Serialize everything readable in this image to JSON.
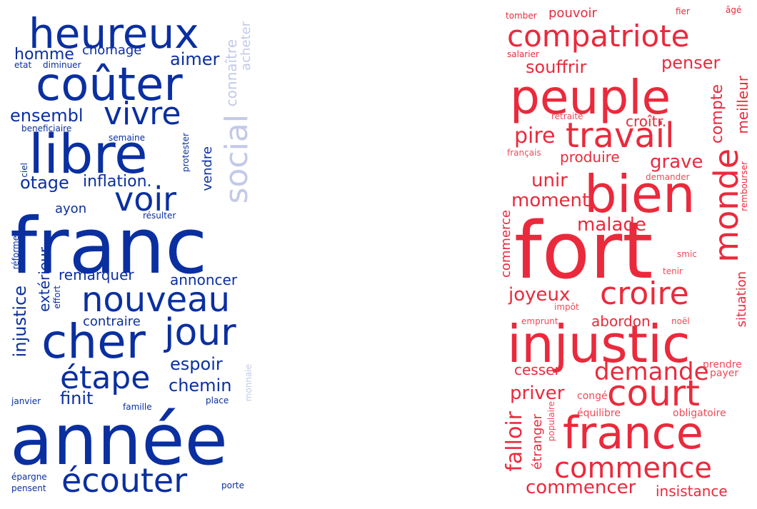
{
  "left_cloud": {
    "color": "#0a2fa0",
    "light_color": "#c3c9e8",
    "words": {
      "heureux": "heureux",
      "couter": "coûter",
      "homme": "homme",
      "chomage": "chômage",
      "aimer": "aimer",
      "etat": "etat",
      "diminuer": "diminuer",
      "connaitre": "connaître",
      "acheter": "acheter",
      "ensembl": "ensembl",
      "vivre": "vivre",
      "beneficiaire": "beneficiaire",
      "libre": "libre",
      "semaine": "semaine",
      "social": "social",
      "ciel": "ciel",
      "protester": "protester",
      "vendre": "vendre",
      "otage": "otage",
      "inflation": "inflation.",
      "voir": "voir",
      "ayon": "ayon",
      "resulter": "résulter",
      "franc": "franc",
      "reforme": "réforme",
      "exterieur": "extérieur",
      "remarquer": "remarquer",
      "annoncer": "annoncer",
      "injustice": "injustice",
      "effort": "effort",
      "nouveau": "nouveau",
      "contraire": "contraire",
      "cher": "cher",
      "jour": "jour",
      "etape": "étape",
      "espoir": "espoir",
      "chemin": "chemin",
      "finit": "finit",
      "janvier": "janvier",
      "famille": "famille",
      "place": "place",
      "monnaie": "monnaie",
      "annee": "année",
      "epargne": "épargne",
      "pensent": "pensent",
      "ecouter": "écouter",
      "porte": "porte"
    }
  },
  "right_cloud": {
    "color": "#ea2a3c",
    "words": {
      "tomber": "tomber",
      "pouvoir": "pouvoir",
      "fier": "fier",
      "age": "âgé",
      "compatriote": "compatriote",
      "salarier": "salarier",
      "penser": "penser",
      "souffrir": "souffrir",
      "peuple": "peuple",
      "meilleur": "meilleur",
      "compte": "compte",
      "retraite": "retraite",
      "croitr": "croîtr.",
      "pire": "pire",
      "travail": "travail",
      "francais": "français",
      "produire": "produire",
      "grave": "grave",
      "monde": "monde",
      "demander": "demander",
      "unir": "unir",
      "bien": "bien",
      "rembourser": "rembourser",
      "moment": "moment",
      "commerce": "commerce",
      "malade": "malade",
      "fort": "fort",
      "smic": "smic",
      "tenir": "tenir",
      "joyeux": "joyeux",
      "croire": "croire",
      "impot": "impôt",
      "situation": "situation",
      "emprunt": "emprunt",
      "abordon": "abordon",
      "noel": "noël",
      "injustic": "injustic",
      "cesser": "cesser",
      "demande": "demande",
      "prendre": "prendre",
      "payer": "payer",
      "priver": "priver",
      "conge": "congé",
      "court": "court",
      "falloir": "falloir",
      "etranger": "étranger",
      "populaire": "populaire",
      "equilibre": "équilibre",
      "obligatoire": "obligatoire",
      "france": "france",
      "commence": "commence",
      "commencer": "commencer",
      "insistance": "insistance"
    }
  }
}
